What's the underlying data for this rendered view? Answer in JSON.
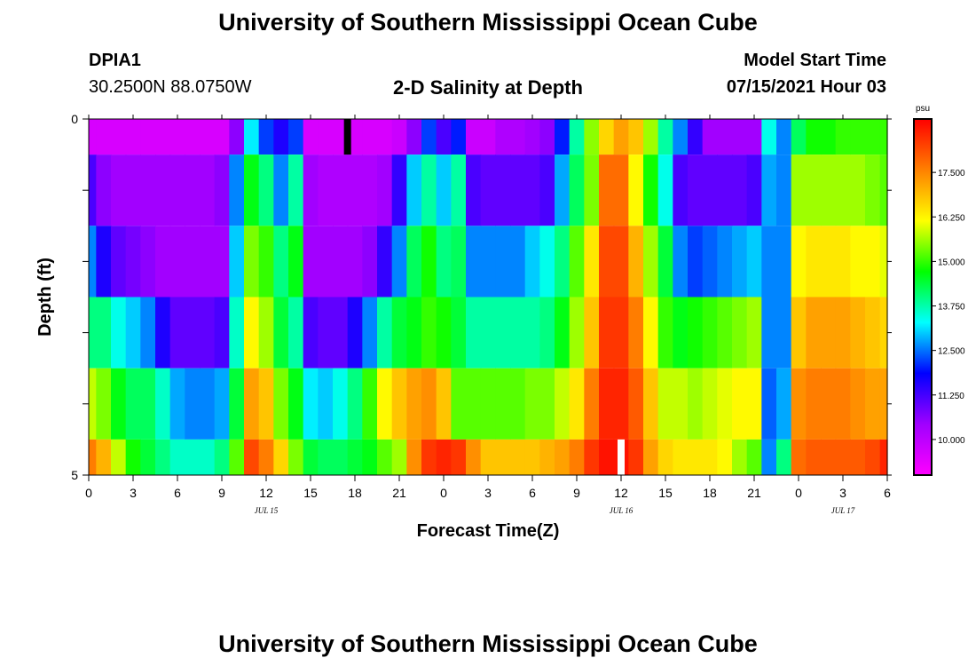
{
  "titles": {
    "top": "University of Southern Mississippi Ocean Cube",
    "bottom": "University of Southern Mississippi Ocean Cube"
  },
  "header": {
    "station": "DPIA1",
    "coords": "30.2500N  88.0750W",
    "plot_title": "2-D Salinity at Depth",
    "model_start_label": "Model Start Time",
    "model_start_value": "07/15/2021 Hour 03"
  },
  "chart_data": {
    "type": "heatmap",
    "xlabel": "Forecast Time(Z)",
    "ylabel": "Depth (ft)",
    "x_tick_labels": [
      "0",
      "3",
      "6",
      "9",
      "12",
      "15",
      "18",
      "21",
      "0",
      "3",
      "6",
      "9",
      "12",
      "15",
      "18",
      "21",
      "0",
      "3",
      "6"
    ],
    "date_labels": [
      {
        "text": "JUL 15",
        "hour": 12
      },
      {
        "text": "JUL 16",
        "hour": 36
      },
      {
        "text": "JUL 17",
        "hour": 51
      }
    ],
    "x_range_hours": [
      0,
      54
    ],
    "y_tick_labels": [
      {
        "value": 0,
        "label": "0"
      },
      {
        "value": 5,
        "label": "5"
      }
    ],
    "y_range": [
      0,
      5
    ],
    "depth_bands": [
      {
        "top": 0.0,
        "bottom": 0.5
      },
      {
        "top": 0.5,
        "bottom": 1.5
      },
      {
        "top": 1.5,
        "bottom": 2.5
      },
      {
        "top": 2.5,
        "bottom": 3.5
      },
      {
        "top": 3.5,
        "bottom": 4.5
      },
      {
        "top": 4.5,
        "bottom": 5.0
      }
    ],
    "time_steps_hours": [
      0,
      1,
      2,
      3,
      4,
      5,
      6,
      7,
      8,
      9,
      10,
      11,
      12,
      13,
      14,
      15,
      16,
      17,
      18,
      19,
      20,
      21,
      22,
      23,
      24,
      25,
      26,
      27,
      28,
      29,
      30,
      31,
      32,
      33,
      34,
      35,
      36,
      37,
      38,
      39,
      40,
      41,
      42,
      43,
      44,
      45,
      46,
      47,
      48,
      49,
      50,
      51,
      52,
      53,
      54
    ],
    "salinity": [
      [
        9.6,
        9.6,
        9.6,
        9.6,
        9.6,
        9.6,
        9.6,
        9.6,
        9.6,
        9.6,
        10.6,
        13.2,
        12.2,
        11.6,
        12.2,
        9.6,
        9.6,
        9.6,
        9.6,
        9.6,
        9.6,
        9.8,
        10.6,
        12.2,
        11.2,
        12.0,
        9.8,
        9.8,
        10.2,
        10.2,
        10.4,
        10.6,
        12.0,
        13.8,
        15.5,
        16.6,
        17.2,
        16.8,
        15.6,
        13.8,
        12.6,
        11.4,
        10.4,
        10.4,
        10.4,
        10.4,
        13.4,
        12.6,
        14.2,
        14.8,
        14.8,
        15.0,
        15.0,
        15.0,
        15.0
      ],
      [
        11.2,
        10.6,
        10.4,
        10.4,
        10.4,
        10.4,
        10.4,
        10.4,
        10.4,
        10.6,
        12.6,
        14.6,
        14.0,
        12.6,
        13.8,
        10.4,
        10.2,
        10.2,
        10.2,
        10.2,
        10.4,
        11.4,
        13.0,
        13.8,
        13.0,
        13.8,
        11.2,
        11.0,
        11.0,
        11.0,
        11.0,
        11.2,
        12.8,
        14.2,
        15.4,
        17.8,
        17.8,
        16.2,
        14.8,
        13.4,
        11.2,
        11.0,
        11.0,
        11.0,
        11.0,
        11.2,
        12.8,
        12.6,
        15.6,
        15.6,
        15.6,
        15.6,
        15.6,
        15.4,
        15.2
      ],
      [
        12.6,
        11.6,
        11.0,
        10.8,
        10.6,
        10.4,
        10.4,
        10.4,
        10.4,
        10.4,
        13.0,
        15.4,
        15.0,
        14.0,
        14.6,
        10.4,
        10.4,
        10.4,
        10.4,
        10.6,
        11.4,
        12.6,
        14.2,
        14.8,
        14.0,
        14.2,
        12.6,
        12.6,
        12.6,
        12.6,
        13.0,
        13.4,
        14.0,
        15.2,
        16.4,
        18.2,
        18.2,
        17.0,
        15.6,
        14.4,
        12.6,
        12.2,
        12.4,
        12.6,
        12.8,
        13.0,
        12.6,
        12.6,
        16.2,
        16.4,
        16.4,
        16.4,
        16.2,
        16.2,
        16.0
      ],
      [
        14.0,
        14.0,
        13.4,
        13.0,
        12.6,
        11.6,
        11.0,
        11.0,
        11.0,
        11.2,
        13.6,
        16.2,
        15.6,
        14.4,
        13.8,
        11.2,
        11.0,
        11.0,
        11.6,
        12.6,
        13.8,
        14.4,
        14.6,
        15.0,
        14.8,
        14.4,
        13.8,
        13.8,
        13.8,
        13.8,
        13.8,
        14.0,
        14.6,
        15.6,
        16.8,
        18.4,
        18.4,
        17.6,
        16.2,
        15.0,
        14.6,
        14.8,
        15.0,
        15.2,
        15.4,
        15.6,
        12.6,
        12.6,
        16.8,
        17.2,
        17.2,
        17.2,
        17.0,
        16.8,
        16.6
      ],
      [
        15.8,
        15.4,
        14.6,
        14.2,
        14.2,
        13.6,
        12.8,
        12.6,
        12.6,
        12.8,
        14.4,
        17.2,
        16.8,
        15.4,
        14.6,
        13.2,
        13.0,
        13.4,
        14.0,
        15.0,
        16.2,
        16.8,
        17.2,
        17.4,
        16.8,
        15.2,
        15.2,
        15.2,
        15.2,
        15.2,
        15.4,
        15.4,
        15.8,
        16.4,
        17.6,
        18.6,
        18.6,
        18.0,
        16.8,
        15.8,
        15.8,
        15.6,
        15.8,
        16.0,
        16.2,
        16.2,
        12.4,
        12.8,
        17.4,
        17.6,
        17.6,
        17.6,
        17.4,
        17.2,
        17.2
      ],
      [
        17.6,
        17.0,
        15.8,
        14.8,
        14.4,
        14.0,
        13.6,
        13.6,
        13.6,
        14.0,
        15.2,
        18.2,
        17.6,
        16.6,
        15.4,
        14.4,
        14.2,
        14.2,
        14.4,
        14.6,
        15.2,
        15.6,
        17.4,
        18.4,
        18.6,
        18.4,
        17.4,
        16.8,
        16.8,
        16.8,
        16.8,
        17.0,
        17.2,
        17.6,
        18.4,
        18.8,
        18.8,
        18.4,
        17.2,
        16.6,
        16.4,
        16.4,
        16.4,
        16.2,
        15.6,
        15.2,
        12.6,
        14.0,
        17.8,
        18.0,
        18.0,
        18.0,
        18.0,
        18.2,
        18.6
      ]
    ],
    "markers": [
      {
        "hour": 17.5,
        "top": 0.0,
        "bottom": 0.5,
        "color": "#000000"
      },
      {
        "hour": 36.0,
        "top": 4.5,
        "bottom": 5.0,
        "color": "#ffffff"
      }
    ],
    "colorbar": {
      "unit": "psu",
      "range": [
        9.0,
        19.0
      ],
      "tick_values": [
        10.0,
        11.25,
        12.5,
        13.75,
        15.0,
        16.25,
        17.5
      ],
      "tick_labels": [
        "10.000",
        "11.250",
        "12.500",
        "13.750",
        "15.000",
        "16.250",
        "17.500"
      ],
      "colors": [
        "#ff00ff",
        "#a000ff",
        "#0000ff",
        "#00ffff",
        "#00ff00",
        "#ffff00",
        "#ff8000",
        "#ff0000"
      ]
    }
  }
}
